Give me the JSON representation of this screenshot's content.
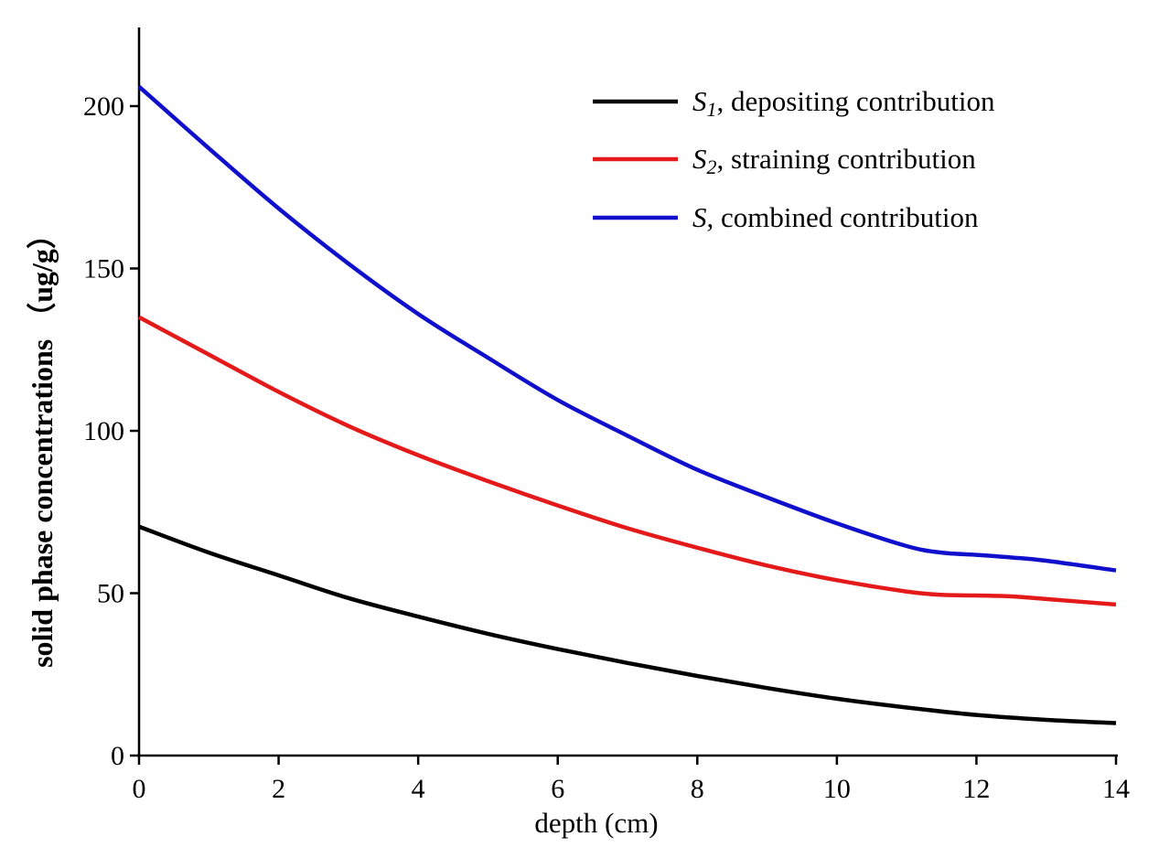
{
  "chart_data": {
    "type": "line",
    "title": "",
    "xlabel": "depth (cm)",
    "ylabel": "solid phase concentrations （ug/g）",
    "xlim": [
      0,
      14
    ],
    "ylim": [
      0,
      225
    ],
    "xticks": [
      0,
      2,
      4,
      6,
      8,
      10,
      12,
      14
    ],
    "yticks": [
      0,
      50,
      100,
      150,
      200
    ],
    "grid": false,
    "legend_position": "top-right",
    "series": [
      {
        "name": "S1, depositing contribution",
        "symbol": "S",
        "subscript": "1",
        "label_rest": ", depositing contribution",
        "color": "#000000",
        "x": [
          0,
          1,
          2,
          3,
          4,
          5,
          6,
          7,
          8,
          9,
          10,
          11,
          12,
          13,
          14
        ],
        "y": [
          70.5,
          62.5,
          55.5,
          48.5,
          42.8,
          37.5,
          32.8,
          28.5,
          24.5,
          20.8,
          17.5,
          14.8,
          12.5,
          11.0,
          10.0
        ]
      },
      {
        "name": "S2, straining contribution",
        "symbol": "S",
        "subscript": "2",
        "label_rest": ", straining contribution",
        "color": "#e41a1a",
        "x": [
          0,
          1,
          2,
          3,
          4,
          5,
          6,
          7,
          8,
          9,
          10,
          11,
          11.5,
          12,
          12.5,
          13,
          14
        ],
        "y": [
          135,
          123.5,
          112,
          101.5,
          92.5,
          84.5,
          77,
          70,
          64,
          58.5,
          54,
          50.5,
          49.5,
          49.3,
          49.0,
          48.2,
          46.5
        ]
      },
      {
        "name": "S, combined contribution",
        "symbol": "S",
        "subscript": "",
        "label_rest": ", combined contribution",
        "color": "#1010cc",
        "x": [
          0,
          1,
          2,
          3,
          4,
          5,
          6,
          7,
          8,
          9,
          10,
          11,
          11.5,
          12,
          12.5,
          13,
          14
        ],
        "y": [
          206,
          187,
          168.5,
          151.5,
          136,
          122.5,
          109.5,
          98.5,
          88,
          79.5,
          71.5,
          64.5,
          62.5,
          61.8,
          61.0,
          60.0,
          57.0
        ]
      }
    ]
  }
}
